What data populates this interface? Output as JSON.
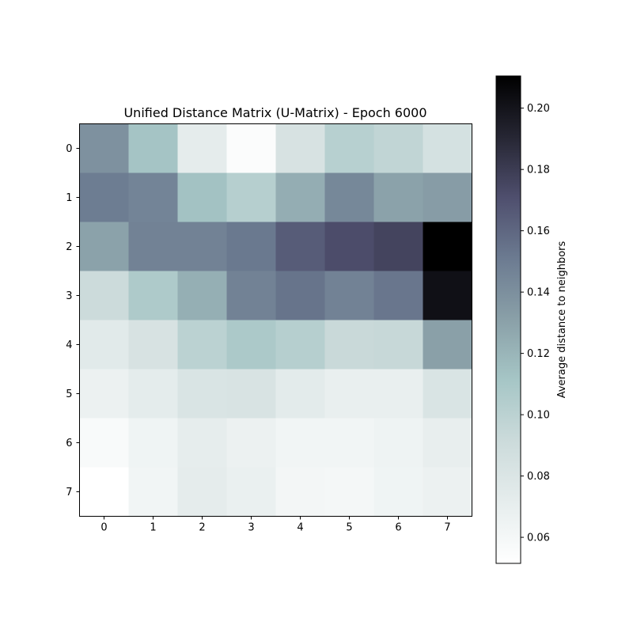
{
  "chart_data": {
    "type": "heatmap",
    "title": "Unified Distance Matrix (U-Matrix) - Epoch 6000",
    "x_ticks": [
      "0",
      "1",
      "2",
      "3",
      "4",
      "5",
      "6",
      "7"
    ],
    "y_ticks": [
      "0",
      "1",
      "2",
      "3",
      "4",
      "5",
      "6",
      "7"
    ],
    "colorbar_label": "Average distance to neighbors",
    "colorbar_ticks": [
      0.06,
      0.08,
      0.1,
      0.12,
      0.14,
      0.16,
      0.18,
      0.2
    ],
    "colorbar_tick_labels": [
      "0.06",
      "0.08",
      "0.10",
      "0.12",
      "0.14",
      "0.16",
      "0.18",
      "0.20"
    ],
    "vmin": 0.0515,
    "vmax": 0.2105,
    "colormap": "bone_r",
    "values": [
      [
        0.139,
        0.112,
        0.072,
        0.055,
        0.083,
        0.102,
        0.097,
        0.085
      ],
      [
        0.15,
        0.146,
        0.113,
        0.103,
        0.124,
        0.144,
        0.13,
        0.133
      ],
      [
        0.13,
        0.147,
        0.147,
        0.152,
        0.165,
        0.172,
        0.176,
        0.2105
      ],
      [
        0.091,
        0.107,
        0.123,
        0.147,
        0.154,
        0.147,
        0.153,
        0.202
      ],
      [
        0.075,
        0.083,
        0.1,
        0.108,
        0.103,
        0.093,
        0.094,
        0.131
      ],
      [
        0.067,
        0.073,
        0.081,
        0.082,
        0.074,
        0.069,
        0.069,
        0.081
      ],
      [
        0.057,
        0.064,
        0.071,
        0.067,
        0.063,
        0.063,
        0.065,
        0.07
      ],
      [
        0.0515,
        0.063,
        0.072,
        0.068,
        0.061,
        0.06,
        0.064,
        0.067
      ]
    ]
  }
}
